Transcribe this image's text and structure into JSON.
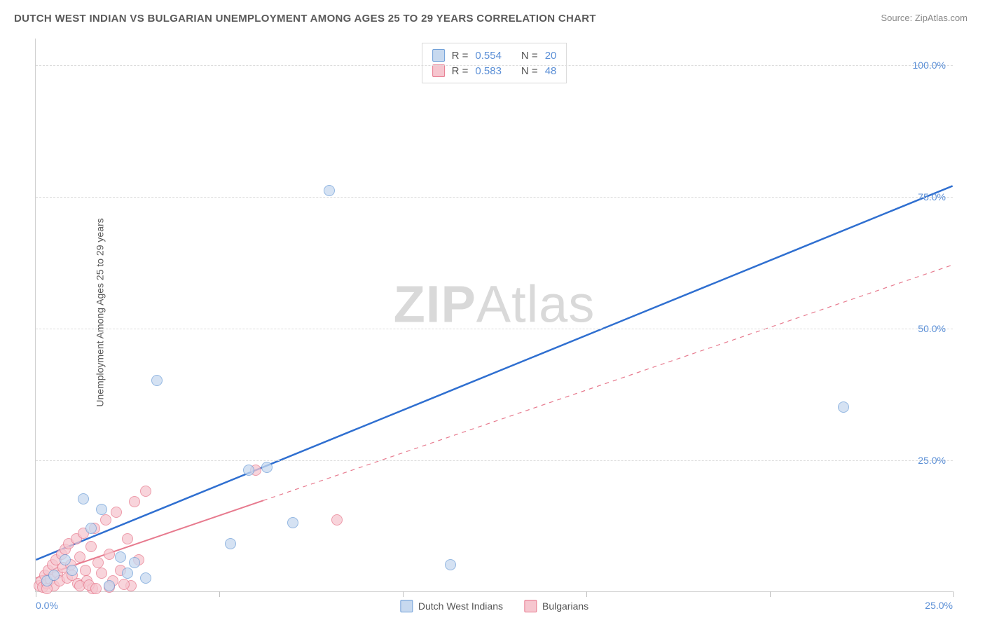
{
  "title": "DUTCH WEST INDIAN VS BULGARIAN UNEMPLOYMENT AMONG AGES 25 TO 29 YEARS CORRELATION CHART",
  "source": "Source: ZipAtlas.com",
  "ylabel": "Unemployment Among Ages 25 to 29 years",
  "watermark_a": "ZIP",
  "watermark_b": "Atlas",
  "chart": {
    "type": "scatter",
    "xlim": [
      0,
      25
    ],
    "ylim": [
      0,
      105
    ],
    "xticks": [
      0,
      5,
      10,
      15,
      20,
      25
    ],
    "xtick_labels": {
      "0": "0.0%",
      "25": "25.0%"
    },
    "yticks": [
      25,
      50,
      75,
      100
    ],
    "ytick_labels": {
      "25": "25.0%",
      "50": "50.0%",
      "75": "75.0%",
      "100": "100.0%"
    },
    "grid_color": "#dcdcdc",
    "background_color": "#ffffff",
    "point_radius": 8,
    "series": [
      {
        "name": "Dutch West Indians",
        "fill": "#c7d9ef",
        "stroke": "#6f9fd8",
        "fill_opacity": 0.75,
        "trend": {
          "x1": 0,
          "y1": 6,
          "x2": 25,
          "y2": 77,
          "color": "#2f6fd0",
          "width": 2.5,
          "dash": "none"
        },
        "R": "0.554",
        "N": "20",
        "points": [
          [
            0.3,
            2.0
          ],
          [
            0.5,
            3.0
          ],
          [
            0.8,
            6.0
          ],
          [
            1.0,
            4.0
          ],
          [
            1.3,
            17.5
          ],
          [
            1.5,
            12.0
          ],
          [
            1.8,
            15.5
          ],
          [
            2.0,
            1.0
          ],
          [
            2.3,
            6.5
          ],
          [
            2.5,
            3.5
          ],
          [
            2.7,
            5.5
          ],
          [
            3.3,
            40.0
          ],
          [
            3.0,
            2.5
          ],
          [
            5.3,
            9.0
          ],
          [
            5.8,
            23.0
          ],
          [
            6.3,
            23.5
          ],
          [
            7.0,
            13.0
          ],
          [
            8.0,
            76.0
          ],
          [
            11.3,
            5.0
          ],
          [
            22.0,
            35.0
          ]
        ]
      },
      {
        "name": "Bulgarians",
        "fill": "#f6c6cf",
        "stroke": "#e77a8e",
        "fill_opacity": 0.75,
        "trend": {
          "x1": 0,
          "y1": 2.5,
          "x2": 25,
          "y2": 62,
          "color": "#e77a8e",
          "width": 2,
          "dash": "solid-then-dash",
          "solid_until_x": 6.2
        },
        "R": "0.583",
        "N": "48",
        "points": [
          [
            0.1,
            1.0
          ],
          [
            0.15,
            2.0
          ],
          [
            0.2,
            0.8
          ],
          [
            0.25,
            3.0
          ],
          [
            0.3,
            1.5
          ],
          [
            0.35,
            4.0
          ],
          [
            0.4,
            2.2
          ],
          [
            0.45,
            5.0
          ],
          [
            0.5,
            1.0
          ],
          [
            0.55,
            6.0
          ],
          [
            0.6,
            3.5
          ],
          [
            0.65,
            2.0
          ],
          [
            0.7,
            7.0
          ],
          [
            0.75,
            4.5
          ],
          [
            0.8,
            8.0
          ],
          [
            0.85,
            2.5
          ],
          [
            0.9,
            9.0
          ],
          [
            0.95,
            5.0
          ],
          [
            1.0,
            3.0
          ],
          [
            1.1,
            10.0
          ],
          [
            1.15,
            1.5
          ],
          [
            1.2,
            6.5
          ],
          [
            1.3,
            11.0
          ],
          [
            1.35,
            4.0
          ],
          [
            1.4,
            2.0
          ],
          [
            1.5,
            8.5
          ],
          [
            1.55,
            0.5
          ],
          [
            1.6,
            12.0
          ],
          [
            1.7,
            5.5
          ],
          [
            1.8,
            3.5
          ],
          [
            1.9,
            13.5
          ],
          [
            2.0,
            7.0
          ],
          [
            2.1,
            2.0
          ],
          [
            2.2,
            15.0
          ],
          [
            2.3,
            4.0
          ],
          [
            2.5,
            10.0
          ],
          [
            2.6,
            1.0
          ],
          [
            2.7,
            17.0
          ],
          [
            2.8,
            6.0
          ],
          [
            3.0,
            19.0
          ],
          [
            1.2,
            1.0
          ],
          [
            1.45,
            1.2
          ],
          [
            0.3,
            0.5
          ],
          [
            2.0,
            0.8
          ],
          [
            2.4,
            1.3
          ],
          [
            1.65,
            0.6
          ],
          [
            6.0,
            23.0
          ],
          [
            8.2,
            13.5
          ]
        ]
      }
    ]
  },
  "stats_labels": {
    "R": "R =",
    "N": "N ="
  },
  "legend": {
    "series1": "Dutch West Indians",
    "series2": "Bulgarians"
  }
}
